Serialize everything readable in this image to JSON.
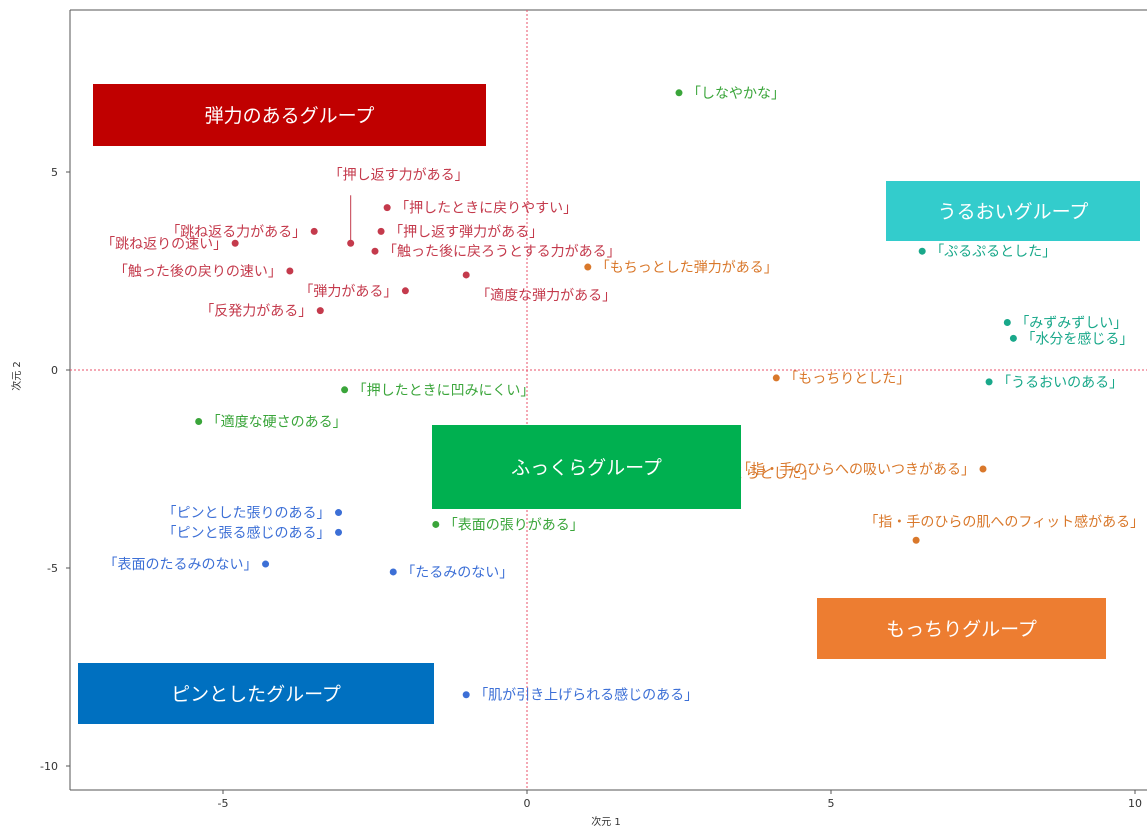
{
  "chart_data": {
    "type": "scatter",
    "xlabel": "次元 1",
    "ylabel": "次元 2",
    "xlim": [
      -7.5,
      10
    ],
    "ylim": [
      -11,
      8.2
    ],
    "xticks": [
      -5,
      0,
      5,
      10
    ],
    "yticks": [
      -10,
      -5,
      0,
      5
    ],
    "grid": false,
    "reference_lines": {
      "x": 0,
      "y": 0
    },
    "colors": {
      "red": "#c43a4c",
      "green": "#3aa53a",
      "teal": "#19a88a",
      "orange": "#d9782b",
      "blue": "#3c6fd6"
    },
    "series": [
      {
        "color": "red",
        "points": [
          {
            "x": -4.8,
            "y": 3.2,
            "label": "「跳ね返りの速い」",
            "anchor": "end"
          },
          {
            "x": -3.5,
            "y": 3.5,
            "label": "「跳ね返る力がある」",
            "anchor": "end"
          },
          {
            "x": -2.3,
            "y": 4.1,
            "label": "「押したときに戻りやすい」",
            "anchor": "start"
          },
          {
            "x": -2.4,
            "y": 3.5,
            "label": "「押し返す弾力がある」",
            "anchor": "start"
          },
          {
            "x": -2.5,
            "y": 3.0,
            "label": "「触った後に戻ろうとする力がある」",
            "anchor": "start"
          },
          {
            "x": -3.9,
            "y": 2.5,
            "label": "「触った後の戻りの速い」",
            "anchor": "end"
          },
          {
            "x": -3.4,
            "y": 1.5,
            "label": "「反発力がある」",
            "anchor": "end"
          },
          {
            "x": -2.0,
            "y": 2.0,
            "label": "「弾力がある」",
            "anchor": "end"
          },
          {
            "x": -1.0,
            "y": 2.4,
            "label": "「適度な弾力がある」",
            "anchor": "below"
          },
          {
            "x": -2.9,
            "y": 3.2,
            "label": "「押し返す力がある」",
            "anchor": "callout"
          }
        ]
      },
      {
        "color": "green",
        "points": [
          {
            "x": 2.5,
            "y": 7.0,
            "label": "「しなやかな」",
            "anchor": "start"
          },
          {
            "x": -3.0,
            "y": -0.5,
            "label": "「押したときに凹みにくい」",
            "anchor": "start"
          },
          {
            "x": -5.4,
            "y": -1.3,
            "label": "「適度な硬さのある」",
            "anchor": "start"
          },
          {
            "x": -1.5,
            "y": -2.7,
            "label": "",
            "anchor": "start"
          },
          {
            "x": -1.5,
            "y": -3.9,
            "label": "「表面の張りがある」",
            "anchor": "start"
          }
        ]
      },
      {
        "color": "teal",
        "points": [
          {
            "x": 6.5,
            "y": 3.0,
            "label": "「ぷるぷるとした」",
            "anchor": "start"
          },
          {
            "x": 7.9,
            "y": 1.2,
            "label": "「みずみずしい」",
            "anchor": "start"
          },
          {
            "x": 8.0,
            "y": 0.8,
            "label": "「水分を感じる」",
            "anchor": "start"
          },
          {
            "x": 7.6,
            "y": -0.3,
            "label": "「うるおいのある」",
            "anchor": "start"
          }
        ]
      },
      {
        "color": "orange",
        "points": [
          {
            "x": 1.0,
            "y": 2.6,
            "label": "「もちっとした弾力がある」",
            "anchor": "start"
          },
          {
            "x": 4.1,
            "y": -0.2,
            "label": "「もっちりとした」",
            "anchor": "start"
          },
          {
            "x": 7.5,
            "y": -2.5,
            "label": "「指・手のひらへの吸いつきがある」",
            "anchor": "end"
          },
          {
            "x": 6.4,
            "y": -4.3,
            "label": "「指・手のひらの肌へのフィット感がある」",
            "anchor": "above"
          },
          {
            "x": 3.0,
            "y": -2.6,
            "label": "っくらとした」",
            "anchor": "start"
          }
        ]
      },
      {
        "color": "blue",
        "points": [
          {
            "x": -3.1,
            "y": -3.6,
            "label": "「ピンとした張りのある」",
            "anchor": "end"
          },
          {
            "x": -3.1,
            "y": -4.1,
            "label": "「ピンと張る感じのある」",
            "anchor": "end"
          },
          {
            "x": -4.3,
            "y": -4.9,
            "label": "「表面のたるみのない」",
            "anchor": "end"
          },
          {
            "x": -2.2,
            "y": -5.1,
            "label": "「たるみのない」",
            "anchor": "start"
          },
          {
            "x": -1.0,
            "y": -8.2,
            "label": "「肌が引き上げられる感じのある」",
            "anchor": "start"
          }
        ]
      }
    ],
    "group_boxes": [
      {
        "label": "弾力のあるグループ",
        "color": "#c00000"
      },
      {
        "label": "うるおいグループ",
        "color": "#33cccc"
      },
      {
        "label": "ふっくらグループ",
        "color": "#00b050"
      },
      {
        "label": "もっちりグループ",
        "color": "#ed7d31"
      },
      {
        "label": "ピンとしたグループ",
        "color": "#0070c0"
      }
    ]
  }
}
